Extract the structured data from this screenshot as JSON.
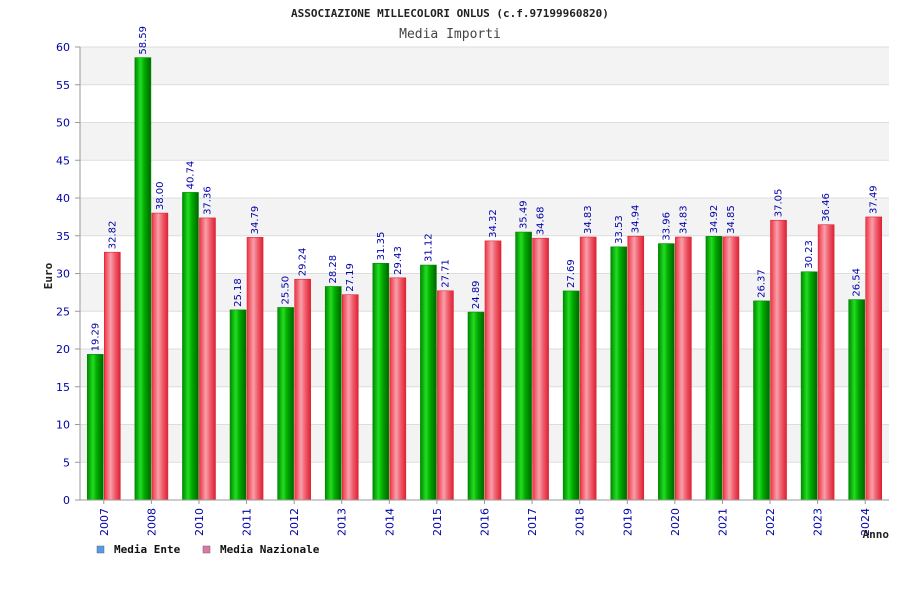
{
  "chart_data": {
    "type": "bar",
    "title": "ASSOCIAZIONE MILLECOLORI ONLUS (c.f.97199960820)",
    "subtitle": "Media Importi",
    "xlabel": "Anno",
    "ylabel": "Euro",
    "ylim": [
      0,
      60
    ],
    "yticks": [
      0,
      5,
      10,
      15,
      20,
      25,
      30,
      35,
      40,
      45,
      50,
      55,
      60
    ],
    "categories": [
      "2007",
      "2008",
      "2010",
      "2011",
      "2012",
      "2013",
      "2014",
      "2015",
      "2016",
      "2017",
      "2018",
      "2019",
      "2020",
      "2021",
      "2022",
      "2023",
      "2024"
    ],
    "series": [
      {
        "name": "Media Ente",
        "color": "#00bb00",
        "values": [
          19.29,
          58.59,
          40.74,
          25.18,
          25.5,
          28.28,
          31.35,
          31.12,
          24.89,
          35.49,
          27.69,
          33.53,
          33.96,
          34.92,
          26.37,
          30.23,
          26.54
        ],
        "labels": [
          "19.29",
          "58.59",
          "40.74",
          "25.18",
          "25.50",
          "28.28",
          "31.35",
          "31.12",
          "24.89",
          "35.49",
          "27.69",
          "33.53",
          "33.96",
          "34.92",
          "26.37",
          "30.23",
          "26.54"
        ]
      },
      {
        "name": "Media Nazionale",
        "color": "#ee4455",
        "values": [
          32.82,
          38.0,
          37.36,
          34.79,
          29.24,
          27.19,
          29.43,
          27.71,
          34.32,
          34.68,
          34.83,
          34.94,
          34.83,
          34.85,
          37.05,
          36.46,
          37.49
        ],
        "labels": [
          "32.82",
          "38.00",
          "37.36",
          "34.79",
          "29.24",
          "27.19",
          "29.43",
          "27.71",
          "34.32",
          "34.68",
          "34.83",
          "34.94",
          "34.83",
          "34.85",
          "37.05",
          "36.46",
          "37.49"
        ]
      }
    ],
    "legend": {
      "placement": "bottom-left",
      "items": [
        {
          "label": "Media Ente",
          "swatch": "#5599ee"
        },
        {
          "label": "Media Nazionale",
          "swatch": "#dd77aa"
        }
      ]
    },
    "grid": true
  }
}
